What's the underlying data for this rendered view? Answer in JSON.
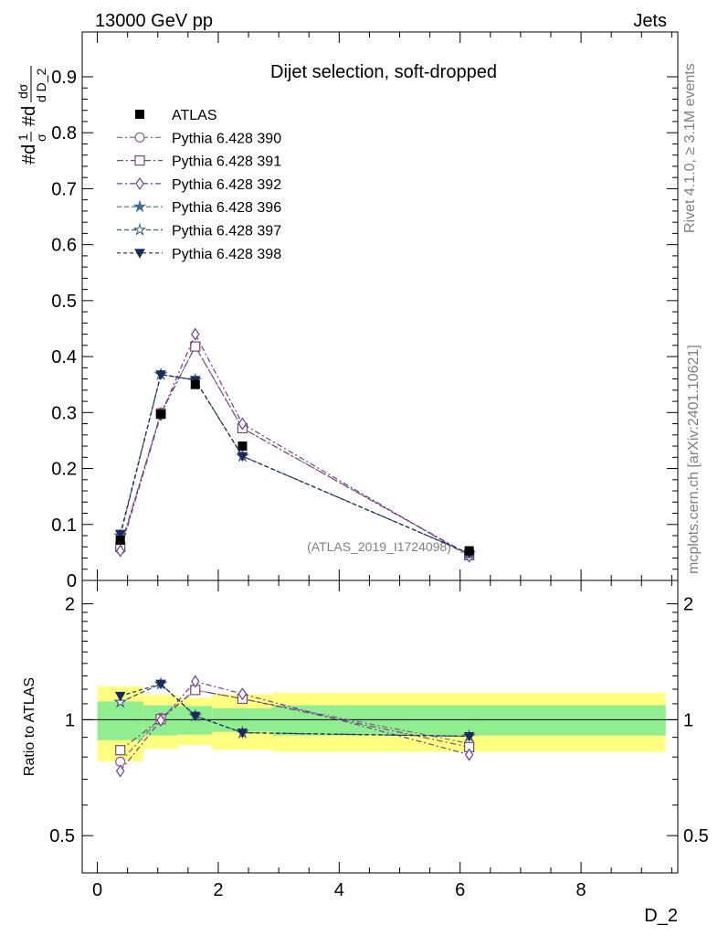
{
  "header": {
    "left": "13000 GeV pp",
    "right": "Jets"
  },
  "side_text": {
    "rivet": "Rivet 4.1.0, ≥ 3.1M events",
    "mcplots": "mcplots.cern.ch [arXiv:2401.10621]"
  },
  "y_label_main": "#d¹/σ #d dσ/d D_2",
  "y_label_main_parts": {
    "a": "#d",
    "b": "1",
    "c": "σ",
    "d": "#d",
    "e": "dσ",
    "f": "d D_2"
  },
  "y_label_ratio": "Ratio to ATLAS",
  "x_label": "D_2",
  "chart_data": {
    "type": "line",
    "title": "Dijet selection, soft-dropped",
    "watermark": "(ATLAS_2019_I1724098)",
    "xlabel": "D_2",
    "ylabel": "1/σ dσ/d D_2",
    "xlim": [
      -0.25,
      9.6
    ],
    "ylim_main": [
      0,
      0.98
    ],
    "ylim_ratio": [
      0.4,
      2.3
    ],
    "x_ticks": [
      "0",
      "2",
      "4",
      "6",
      "8"
    ],
    "y_ticks_main": [
      "0",
      "0.1",
      "0.2",
      "0.3",
      "0.4",
      "0.5",
      "0.6",
      "0.7",
      "0.8",
      "0.9"
    ],
    "y_ticks_ratio": [
      "0.5",
      "1",
      "2"
    ],
    "x": [
      0.38,
      1.05,
      1.62,
      2.4,
      6.15
    ],
    "bins": [
      [
        0,
        0.76
      ],
      [
        0.76,
        1.33
      ],
      [
        1.33,
        1.9
      ],
      [
        1.9,
        2.9
      ],
      [
        2.9,
        9.4
      ]
    ],
    "data": {
      "name": "ATLAS",
      "values": [
        0.072,
        0.297,
        0.35,
        0.24,
        0.053
      ]
    },
    "band_inner": [
      0.115,
      0.09,
      0.085,
      0.07,
      0.09
    ],
    "band_outer": [
      0.22,
      0.16,
      0.14,
      0.165,
      0.175
    ],
    "series": [
      {
        "name": "Pythia 6.428 390",
        "color": "#8a5a9a",
        "dash": "6,3,2,3",
        "marker": "circle-open",
        "values": [
          0.056,
          0.3,
          0.418,
          0.272,
          0.046
        ]
      },
      {
        "name": "Pythia 6.428 391",
        "color": "#7d4a6a",
        "dash": "7,3,2,3",
        "marker": "square-open",
        "values": [
          0.06,
          0.298,
          0.418,
          0.272,
          0.045
        ]
      },
      {
        "name": "Pythia 6.428 392",
        "color": "#6a3fa0",
        "dash": "6,3,2,3",
        "marker": "diamond-open",
        "values": [
          0.053,
          0.296,
          0.44,
          0.28,
          0.043
        ]
      },
      {
        "name": "Pythia 6.428 396",
        "color": "#3f6f8a",
        "dash": "5,3",
        "marker": "star-filled",
        "values": [
          0.08,
          0.368,
          0.358,
          0.222,
          0.048
        ]
      },
      {
        "name": "Pythia 6.428 397",
        "color": "#3a5a7a",
        "dash": "5,3",
        "marker": "star-open",
        "values": [
          0.08,
          0.368,
          0.358,
          0.222,
          0.048
        ]
      },
      {
        "name": "Pythia 6.428 398",
        "color": "#1a2a5a",
        "dash": "4,3",
        "marker": "triangle-down",
        "values": [
          0.083,
          0.368,
          0.358,
          0.222,
          0.048
        ]
      }
    ]
  }
}
